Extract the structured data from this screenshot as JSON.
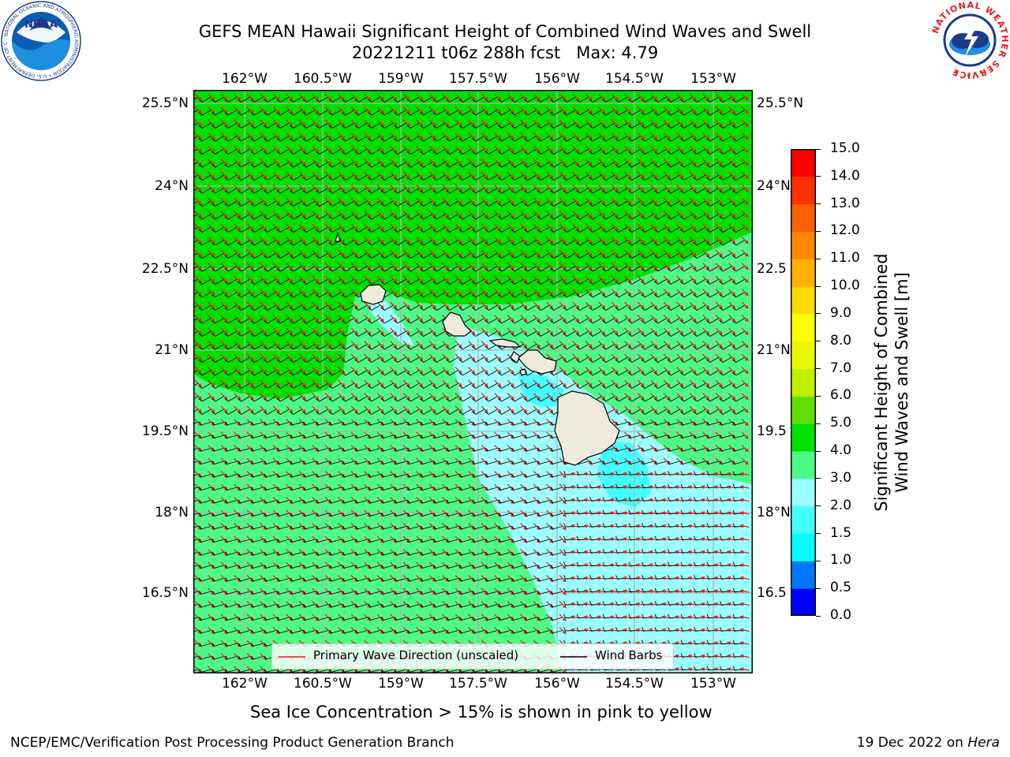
{
  "header": {
    "title_line1": "GEFS MEAN Hawaii Significant Height of Combined Wind Waves and Swell",
    "title_line2": "20221211 t06z 288h fcst",
    "max_label": "Max: 4.79"
  },
  "logos": {
    "noaa_text": "NOAA",
    "noaa_ring_text": "NATIONAL OCEANIC AND ATMOSPHERIC ADMINISTRATION • U.S. DEPARTMENT OF COMMERCE •",
    "nws_ring_text": "NATIONAL WEATHER SERVICE"
  },
  "map": {
    "lon_labels": [
      "162°W",
      "160.5°W",
      "159°W",
      "157.5°W",
      "156°W",
      "154.5°W",
      "153°W"
    ],
    "lat_labels_left": [
      "25.5°N",
      "24°N",
      "22.5°N",
      "21°N",
      "19.5°N",
      "18°N",
      "16.5°N"
    ],
    "lat_labels_right": [
      "25.5°N",
      "24°N",
      "22.5",
      "21°N",
      "19.5",
      "18°N",
      "16.5"
    ],
    "land_color": "#efebdc",
    "coast_color": "#000000",
    "grid_color": "#b0b0b0",
    "wave_arrow_color": "#e02020",
    "wind_barb_color": "#000000"
  },
  "legend": {
    "wave_label": "Primary Wave Direction (unscaled)",
    "barb_label": "Wind Barbs"
  },
  "colorbar": {
    "label_line1": "Significant Height of Combined",
    "label_line2": "Wind Waves and Swell [m]",
    "ticks": [
      "0.0",
      "0.5",
      "1.0",
      "1.5",
      "2.0",
      "3.0",
      "4.0",
      "5.0",
      "6.0",
      "7.0",
      "8.0",
      "9.0",
      "10.0",
      "11.0",
      "12.0",
      "13.0",
      "14.0",
      "15.0"
    ],
    "colors": [
      "#0000ff",
      "#0077ff",
      "#00ffff",
      "#44ffff",
      "#9cffff",
      "#4dfa87",
      "#00e000",
      "#5ee000",
      "#c0f000",
      "#e8f800",
      "#ffff00",
      "#ffd800",
      "#ffb000",
      "#ff8800",
      "#ff6000",
      "#ff3000",
      "#ff0000"
    ]
  },
  "footer": {
    "note": "Sea Ice Concentration > 15% is shown in pink to yellow",
    "branch": "NCEP/EMC/Verification Post Processing Product Generation Branch",
    "date": "19 Dec 2022 on",
    "machine": "Hera"
  }
}
